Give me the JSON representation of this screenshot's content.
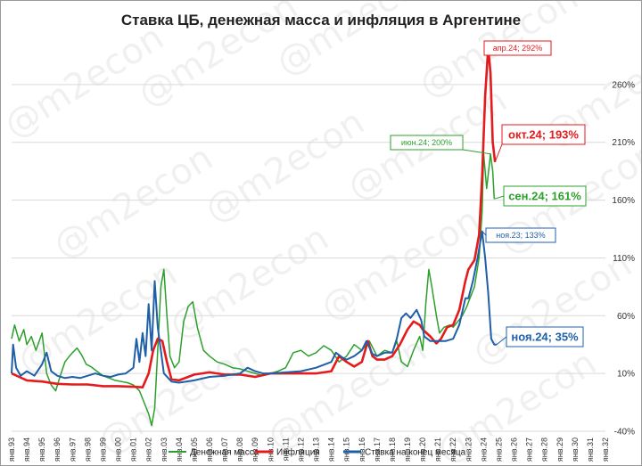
{
  "chart_data": {
    "type": "line",
    "title": "Ставка ЦБ, денежная масса и инфляция в Аргентине",
    "watermark": "@m2econ",
    "yticks": [
      "-40%",
      "10%",
      "60%",
      "110%",
      "160%",
      "210%",
      "260%"
    ],
    "ylim": [
      -40,
      300
    ],
    "x_labels": [
      "янв.93",
      "янв.94",
      "янв.95",
      "янв.96",
      "янв.97",
      "янв.98",
      "янв.99",
      "янв.00",
      "янв.01",
      "янв.02",
      "янв.03",
      "янв.04",
      "янв.05",
      "янв.06",
      "янв.07",
      "янв.08",
      "янв.09",
      "янв.10",
      "янв.11",
      "янв.12",
      "янв.13",
      "янв.14",
      "янв.15",
      "янв.16",
      "янв.17",
      "янв.18",
      "янв.19",
      "янв.20",
      "янв.21",
      "янв.22",
      "янв.23",
      "янв.24",
      "янв.25",
      "янв.26",
      "янв.27",
      "янв.28",
      "янв.29",
      "янв.30",
      "янв.31",
      "янв.32"
    ],
    "colors": {
      "money": "#2ca02c",
      "inflation": "#e41a1c",
      "rate": "#1f5fa8"
    },
    "series": [
      {
        "name": "Денежная масса",
        "key": "money",
        "points": [
          [
            1993.0,
            40
          ],
          [
            1993.2,
            52
          ],
          [
            1993.5,
            38
          ],
          [
            1993.8,
            48
          ],
          [
            1994.0,
            35
          ],
          [
            1994.3,
            42
          ],
          [
            1994.6,
            30
          ],
          [
            1995.0,
            45
          ],
          [
            1995.3,
            10
          ],
          [
            1995.6,
            0
          ],
          [
            1995.9,
            -5
          ],
          [
            1996.2,
            8
          ],
          [
            1996.5,
            20
          ],
          [
            1996.8,
            25
          ],
          [
            1997.0,
            28
          ],
          [
            1997.3,
            32
          ],
          [
            1997.6,
            26
          ],
          [
            1997.9,
            18
          ],
          [
            1998.2,
            16
          ],
          [
            1998.6,
            12
          ],
          [
            1999.0,
            8
          ],
          [
            1999.4,
            6
          ],
          [
            1999.8,
            4
          ],
          [
            2000.2,
            3
          ],
          [
            2000.6,
            2
          ],
          [
            2001.0,
            0
          ],
          [
            2001.4,
            -5
          ],
          [
            2001.7,
            -15
          ],
          [
            2002.0,
            -25
          ],
          [
            2002.2,
            -35
          ],
          [
            2002.4,
            -20
          ],
          [
            2002.6,
            30
          ],
          [
            2002.8,
            85
          ],
          [
            2003.0,
            100
          ],
          [
            2003.2,
            60
          ],
          [
            2003.4,
            25
          ],
          [
            2003.7,
            15
          ],
          [
            2004.0,
            20
          ],
          [
            2004.3,
            55
          ],
          [
            2004.6,
            68
          ],
          [
            2004.9,
            72
          ],
          [
            2005.2,
            50
          ],
          [
            2005.6,
            30
          ],
          [
            2006.0,
            25
          ],
          [
            2006.5,
            20
          ],
          [
            2007.0,
            18
          ],
          [
            2007.5,
            15
          ],
          [
            2008.0,
            14
          ],
          [
            2008.5,
            12
          ],
          [
            2009.0,
            10
          ],
          [
            2009.5,
            8
          ],
          [
            2010.0,
            10
          ],
          [
            2010.5,
            12
          ],
          [
            2011.0,
            15
          ],
          [
            2011.5,
            28
          ],
          [
            2012.0,
            30
          ],
          [
            2012.5,
            25
          ],
          [
            2013.0,
            28
          ],
          [
            2013.5,
            34
          ],
          [
            2014.0,
            30
          ],
          [
            2014.5,
            20
          ],
          [
            2015.0,
            25
          ],
          [
            2015.5,
            35
          ],
          [
            2016.0,
            30
          ],
          [
            2016.5,
            38
          ],
          [
            2017.0,
            25
          ],
          [
            2017.5,
            30
          ],
          [
            2018.0,
            28
          ],
          [
            2018.3,
            38
          ],
          [
            2018.6,
            20
          ],
          [
            2019.0,
            16
          ],
          [
            2019.4,
            30
          ],
          [
            2019.8,
            42
          ],
          [
            2020.0,
            30
          ],
          [
            2020.2,
            70
          ],
          [
            2020.4,
            100
          ],
          [
            2020.6,
            85
          ],
          [
            2020.9,
            60
          ],
          [
            2021.1,
            45
          ],
          [
            2021.4,
            50
          ],
          [
            2021.8,
            52
          ],
          [
            2022.0,
            50
          ],
          [
            2022.3,
            55
          ],
          [
            2022.6,
            60
          ],
          [
            2022.9,
            68
          ],
          [
            2023.1,
            75
          ],
          [
            2023.4,
            85
          ],
          [
            2023.7,
            110
          ],
          [
            2023.9,
            150
          ],
          [
            2024.0,
            200
          ],
          [
            2024.2,
            170
          ],
          [
            2024.45,
            200
          ],
          [
            2024.6,
            185
          ],
          [
            2024.7,
            161
          ]
        ]
      },
      {
        "name": "Инфляция",
        "key": "inflation",
        "points": [
          [
            1993.0,
            10
          ],
          [
            1993.5,
            7
          ],
          [
            1994.0,
            4
          ],
          [
            1995.0,
            3
          ],
          [
            1996.0,
            1
          ],
          [
            1997.0,
            0.5
          ],
          [
            1998.0,
            0.5
          ],
          [
            1999.0,
            -1
          ],
          [
            2000.0,
            -1
          ],
          [
            2001.0,
            -1.5
          ],
          [
            2001.6,
            -2
          ],
          [
            2002.0,
            10
          ],
          [
            2002.3,
            30
          ],
          [
            2002.6,
            40
          ],
          [
            2002.9,
            38
          ],
          [
            2003.2,
            20
          ],
          [
            2003.5,
            5
          ],
          [
            2004.0,
            4
          ],
          [
            2005.0,
            9
          ],
          [
            2006.0,
            11
          ],
          [
            2007.0,
            9
          ],
          [
            2008.0,
            9
          ],
          [
            2009.0,
            7
          ],
          [
            2010.0,
            10
          ],
          [
            2011.0,
            10
          ],
          [
            2012.0,
            10
          ],
          [
            2013.0,
            10
          ],
          [
            2014.0,
            12
          ],
          [
            2014.5,
            25
          ],
          [
            2015.0,
            20
          ],
          [
            2015.5,
            16
          ],
          [
            2016.0,
            20
          ],
          [
            2016.4,
            38
          ],
          [
            2016.7,
            25
          ],
          [
            2017.0,
            22
          ],
          [
            2017.5,
            22
          ],
          [
            2018.0,
            25
          ],
          [
            2018.5,
            35
          ],
          [
            2019.0,
            48
          ],
          [
            2019.4,
            55
          ],
          [
            2019.8,
            52
          ],
          [
            2020.0,
            48
          ],
          [
            2020.5,
            42
          ],
          [
            2020.9,
            36
          ],
          [
            2021.2,
            40
          ],
          [
            2021.6,
            50
          ],
          [
            2022.0,
            52
          ],
          [
            2022.4,
            65
          ],
          [
            2022.8,
            90
          ],
          [
            2023.0,
            100
          ],
          [
            2023.4,
            108
          ],
          [
            2023.7,
            130
          ],
          [
            2023.9,
            180
          ],
          [
            2024.1,
            250
          ],
          [
            2024.3,
            292
          ],
          [
            2024.45,
            270
          ],
          [
            2024.6,
            210
          ],
          [
            2024.75,
            193
          ]
        ]
      },
      {
        "name": "Ставка на конец месяца",
        "key": "rate",
        "points": [
          [
            1993.0,
            10
          ],
          [
            1993.1,
            35
          ],
          [
            1993.3,
            15
          ],
          [
            1993.6,
            8
          ],
          [
            1994.0,
            12
          ],
          [
            1994.5,
            8
          ],
          [
            1995.0,
            18
          ],
          [
            1995.3,
            28
          ],
          [
            1995.6,
            12
          ],
          [
            1996.0,
            8
          ],
          [
            1996.5,
            6
          ],
          [
            1997.0,
            7
          ],
          [
            1997.5,
            6
          ],
          [
            1998.0,
            8
          ],
          [
            1998.5,
            10
          ],
          [
            1999.0,
            8
          ],
          [
            1999.5,
            7
          ],
          [
            2000.0,
            9
          ],
          [
            2000.5,
            10
          ],
          [
            2001.0,
            15
          ],
          [
            2001.2,
            40
          ],
          [
            2001.4,
            20
          ],
          [
            2001.6,
            45
          ],
          [
            2001.8,
            25
          ],
          [
            2002.0,
            70
          ],
          [
            2002.2,
            30
          ],
          [
            2002.4,
            90
          ],
          [
            2002.6,
            50
          ],
          [
            2002.8,
            30
          ],
          [
            2003.0,
            10
          ],
          [
            2003.5,
            3
          ],
          [
            2004.0,
            2
          ],
          [
            2005.0,
            4
          ],
          [
            2006.0,
            7
          ],
          [
            2007.0,
            8
          ],
          [
            2008.0,
            10
          ],
          [
            2008.5,
            15
          ],
          [
            2009.0,
            12
          ],
          [
            2009.5,
            10
          ],
          [
            2010.0,
            10
          ],
          [
            2011.0,
            11
          ],
          [
            2012.0,
            12
          ],
          [
            2013.0,
            15
          ],
          [
            2014.0,
            20
          ],
          [
            2014.3,
            28
          ],
          [
            2014.7,
            24
          ],
          [
            2015.0,
            22
          ],
          [
            2015.5,
            25
          ],
          [
            2016.0,
            30
          ],
          [
            2016.3,
            38
          ],
          [
            2016.7,
            27
          ],
          [
            2017.0,
            25
          ],
          [
            2017.5,
            28
          ],
          [
            2018.0,
            28
          ],
          [
            2018.3,
            40
          ],
          [
            2018.6,
            58
          ],
          [
            2018.9,
            62
          ],
          [
            2019.2,
            58
          ],
          [
            2019.6,
            65
          ],
          [
            2019.9,
            56
          ],
          [
            2020.1,
            42
          ],
          [
            2020.5,
            38
          ],
          [
            2021.0,
            38
          ],
          [
            2021.5,
            38
          ],
          [
            2022.0,
            40
          ],
          [
            2022.4,
            52
          ],
          [
            2022.8,
            75
          ],
          [
            2023.0,
            75
          ],
          [
            2023.3,
            90
          ],
          [
            2023.6,
            110
          ],
          [
            2023.9,
            133
          ],
          [
            2024.1,
            110
          ],
          [
            2024.3,
            80
          ],
          [
            2024.5,
            40
          ],
          [
            2024.7,
            35
          ],
          [
            2024.85,
            35
          ]
        ]
      }
    ],
    "annotations": [
      {
        "text": "апр.24; 292%",
        "key": "inflation",
        "size": "small"
      },
      {
        "text": "окт.24; 193%",
        "key": "inflation",
        "size": "large"
      },
      {
        "text": "июн.24; 200%",
        "key": "money",
        "size": "small"
      },
      {
        "text": "сен.24; 161%",
        "key": "money",
        "size": "large"
      },
      {
        "text": "ноя.23; 133%",
        "key": "rate",
        "size": "small"
      },
      {
        "text": "ноя.24; 35%",
        "key": "rate",
        "size": "large"
      }
    ],
    "legend": [
      "Денежная масса",
      "Инфляция",
      "Ставка на конец месяца"
    ],
    "legend_position": "bottom"
  }
}
